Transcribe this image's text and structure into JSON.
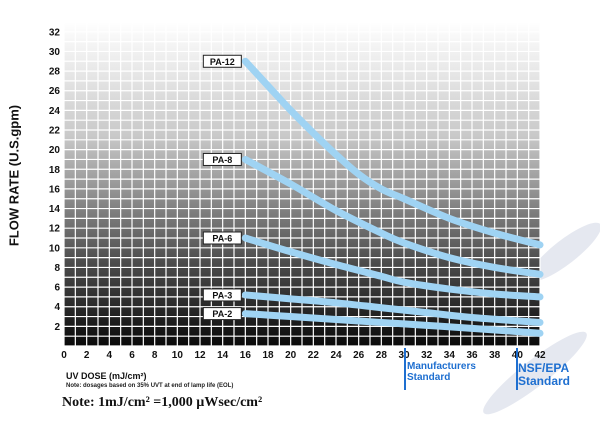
{
  "chart_data": {
    "type": "line",
    "ylabel": "FLOW RATE (U.S.gpm)",
    "xlabel": "UV DOSE (mJ/cm²)",
    "x_note": "Note: dosages based on 35% UVT at end of lamp life (EOL)",
    "bottom_note": "Note: 1mJ/cm² =1,000 µWsec/cm²",
    "xlim": [
      0,
      42
    ],
    "ylim": [
      0,
      33
    ],
    "x_ticks": [
      0,
      2,
      4,
      6,
      8,
      10,
      12,
      14,
      16,
      18,
      20,
      22,
      24,
      26,
      28,
      30,
      32,
      34,
      36,
      38,
      40,
      42
    ],
    "y_ticks": [
      2,
      4,
      6,
      8,
      10,
      12,
      14,
      16,
      18,
      20,
      22,
      24,
      26,
      28,
      30,
      32
    ],
    "grid": true,
    "series": [
      {
        "name": "PA-12",
        "x": [
          16,
          18,
          20,
          22,
          24,
          26,
          28,
          30,
          34,
          38,
          42
        ],
        "y": [
          29,
          26.5,
          24,
          21.7,
          19.5,
          17.5,
          16,
          15,
          13,
          11.5,
          10.3
        ]
      },
      {
        "name": "PA-8",
        "x": [
          16,
          20,
          24,
          28,
          30,
          34,
          38,
          42
        ],
        "y": [
          19,
          16.5,
          13.8,
          11.5,
          10.5,
          9,
          8,
          7.3
        ]
      },
      {
        "name": "PA-6",
        "x": [
          16,
          20,
          24,
          28,
          30,
          34,
          38,
          42
        ],
        "y": [
          11,
          9.6,
          8.3,
          7.1,
          6.5,
          5.8,
          5.3,
          5
        ]
      },
      {
        "name": "PA-3",
        "x": [
          16,
          20,
          24,
          28,
          32,
          36,
          42
        ],
        "y": [
          5.2,
          4.8,
          4.4,
          3.9,
          3.4,
          2.9,
          2.4
        ]
      },
      {
        "name": "PA-2",
        "x": [
          16,
          20,
          24,
          28,
          32,
          36,
          42
        ],
        "y": [
          3.3,
          3,
          2.7,
          2.4,
          2.1,
          1.8,
          1.3
        ]
      }
    ],
    "line_color": "#9fd3f3",
    "standards": [
      {
        "x": 30,
        "label_line1": "Manufacturers",
        "label_line2": "Standard"
      },
      {
        "x": 40,
        "label_line1": "NSF/EPA",
        "label_line2": "Standard"
      }
    ],
    "standard_color": "#1e6fd0"
  }
}
